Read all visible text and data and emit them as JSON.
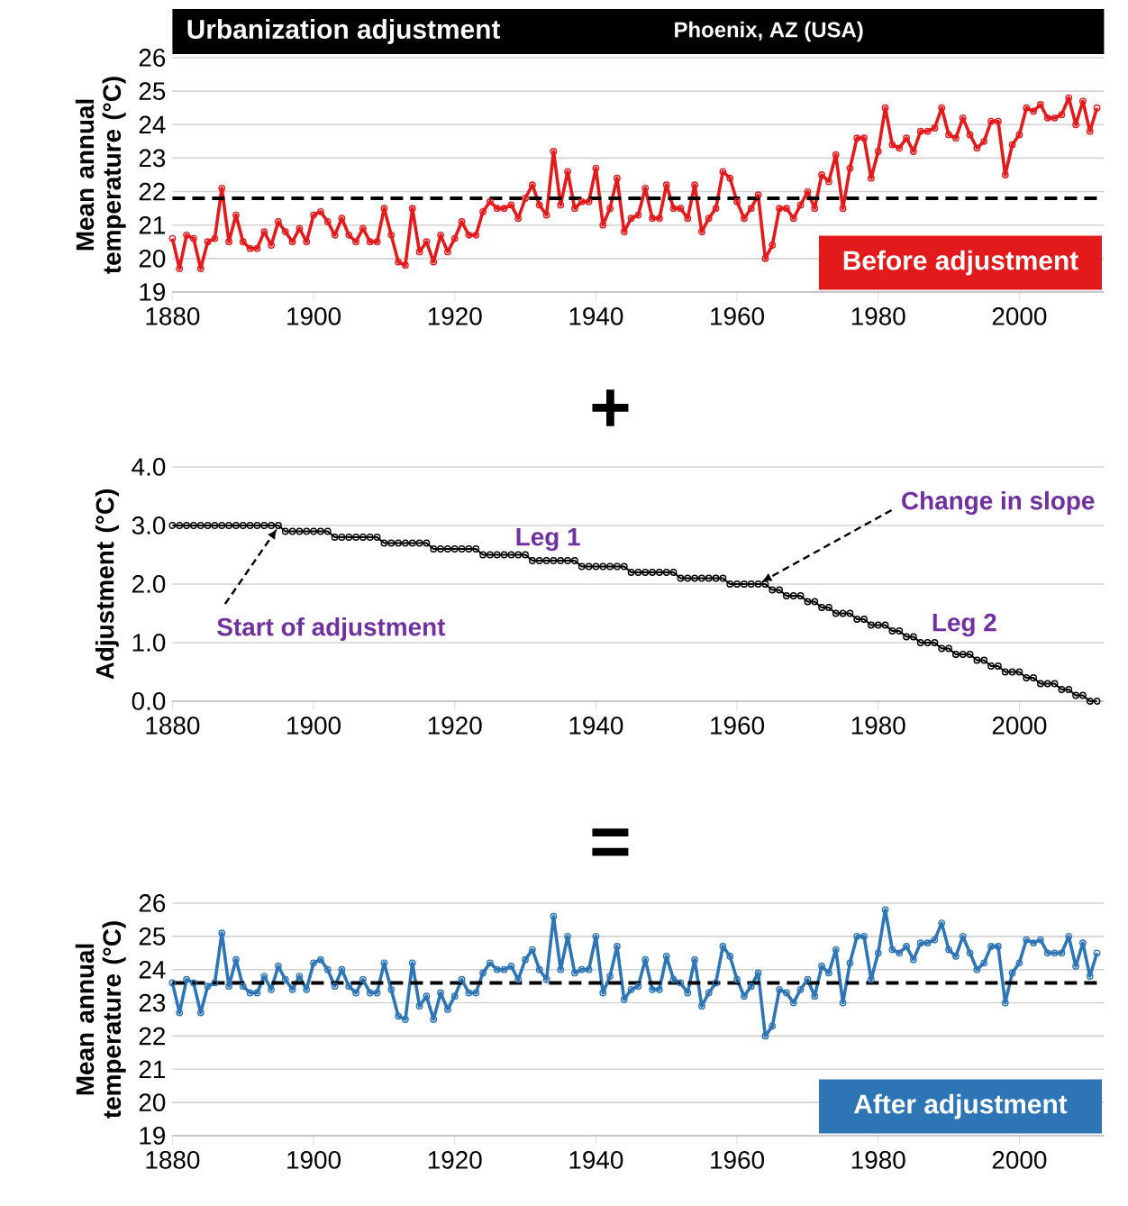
{
  "chart_data": [
    {
      "type": "line",
      "title": "Urbanization adjustment",
      "subtitle": "Phoenix, AZ (USA)",
      "ylabel": "Mean annual temperature (°C)",
      "x": [
        1880,
        1881,
        1882,
        1883,
        1884,
        1885,
        1886,
        1887,
        1888,
        1889,
        1890,
        1891,
        1892,
        1893,
        1894,
        1895,
        1896,
        1897,
        1898,
        1899,
        1900,
        1901,
        1902,
        1903,
        1904,
        1905,
        1906,
        1907,
        1908,
        1909,
        1910,
        1911,
        1912,
        1913,
        1914,
        1915,
        1916,
        1917,
        1918,
        1919,
        1920,
        1921,
        1922,
        1923,
        1924,
        1925,
        1926,
        1927,
        1928,
        1929,
        1930,
        1931,
        1932,
        1933,
        1934,
        1935,
        1936,
        1937,
        1938,
        1939,
        1940,
        1941,
        1942,
        1943,
        1944,
        1945,
        1946,
        1947,
        1948,
        1949,
        1950,
        1951,
        1952,
        1953,
        1954,
        1955,
        1956,
        1957,
        1958,
        1959,
        1960,
        1961,
        1962,
        1963,
        1964,
        1965,
        1966,
        1967,
        1968,
        1969,
        1970,
        1971,
        1972,
        1973,
        1974,
        1975,
        1976,
        1977,
        1978,
        1979,
        1980,
        1981,
        1982,
        1983,
        1984,
        1985,
        1986,
        1987,
        1988,
        1989,
        1990,
        1991,
        1992,
        1993,
        1994,
        1995,
        1996,
        1997,
        1998,
        1999,
        2000,
        2001,
        2002,
        2003,
        2004,
        2005,
        2006,
        2007,
        2008,
        2009,
        2010,
        2011
      ],
      "series": [
        {
          "color": "#e31a1c",
          "values": [
            20.6,
            19.7,
            20.7,
            20.6,
            19.7,
            20.5,
            20.6,
            22.1,
            20.5,
            21.3,
            20.5,
            20.3,
            20.3,
            20.8,
            20.4,
            21.1,
            20.8,
            20.5,
            20.9,
            20.5,
            21.3,
            21.4,
            21.1,
            20.7,
            21.2,
            20.7,
            20.5,
            20.9,
            20.5,
            20.5,
            21.5,
            20.7,
            19.9,
            19.8,
            21.5,
            20.2,
            20.5,
            19.9,
            20.7,
            20.2,
            20.6,
            21.1,
            20.7,
            20.7,
            21.4,
            21.7,
            21.5,
            21.5,
            21.6,
            21.2,
            21.8,
            22.2,
            21.6,
            21.3,
            23.2,
            21.6,
            22.6,
            21.5,
            21.7,
            21.7,
            22.7,
            21.0,
            21.5,
            22.4,
            20.8,
            21.2,
            21.3,
            22.1,
            21.2,
            21.2,
            22.2,
            21.5,
            21.5,
            21.2,
            22.2,
            20.8,
            21.2,
            21.5,
            22.6,
            22.4,
            21.7,
            21.2,
            21.5,
            21.9,
            20.0,
            20.4,
            21.5,
            21.5,
            21.2,
            21.6,
            22.0,
            21.5,
            22.5,
            22.3,
            23.1,
            21.5,
            22.7,
            23.6,
            23.6,
            22.4,
            23.2,
            24.5,
            23.4,
            23.3,
            23.6,
            23.2,
            23.8,
            23.8,
            23.9,
            24.5,
            23.7,
            23.6,
            24.2,
            23.7,
            23.3,
            23.5,
            24.1,
            24.1,
            22.5,
            23.4,
            23.7,
            24.5,
            24.4,
            24.6,
            24.2,
            24.2,
            24.3,
            24.8,
            24.0,
            24.7,
            23.8,
            24.5
          ]
        }
      ],
      "xlim": [
        1880,
        2012
      ],
      "xticks": [
        1880,
        1900,
        1920,
        1940,
        1960,
        1980,
        2000
      ],
      "ylim": [
        19,
        26
      ],
      "yticks": [
        19,
        20,
        21,
        22,
        23,
        24,
        25,
        26
      ],
      "grid": "y",
      "marker": "circle",
      "ref_lines": [
        {
          "axis": "y",
          "value": 21.8,
          "color": "#000000",
          "line_style": "dashed"
        }
      ],
      "annotations": [
        "Before adjustment"
      ]
    },
    {
      "type": "line",
      "ylabel": "Adjustment (°C)",
      "x": [
        1880,
        1881,
        1882,
        1883,
        1884,
        1885,
        1886,
        1887,
        1888,
        1889,
        1890,
        1891,
        1892,
        1893,
        1894,
        1895,
        1896,
        1897,
        1898,
        1899,
        1900,
        1901,
        1902,
        1903,
        1904,
        1905,
        1906,
        1907,
        1908,
        1909,
        1910,
        1911,
        1912,
        1913,
        1914,
        1915,
        1916,
        1917,
        1918,
        1919,
        1920,
        1921,
        1922,
        1923,
        1924,
        1925,
        1926,
        1927,
        1928,
        1929,
        1930,
        1931,
        1932,
        1933,
        1934,
        1935,
        1936,
        1937,
        1938,
        1939,
        1940,
        1941,
        1942,
        1943,
        1944,
        1945,
        1946,
        1947,
        1948,
        1949,
        1950,
        1951,
        1952,
        1953,
        1954,
        1955,
        1956,
        1957,
        1958,
        1959,
        1960,
        1961,
        1962,
        1963,
        1964,
        1965,
        1966,
        1967,
        1968,
        1969,
        1970,
        1971,
        1972,
        1973,
        1974,
        1975,
        1976,
        1977,
        1978,
        1979,
        1980,
        1981,
        1982,
        1983,
        1984,
        1985,
        1986,
        1987,
        1988,
        1989,
        1990,
        1991,
        1992,
        1993,
        1994,
        1995,
        1996,
        1997,
        1998,
        1999,
        2000,
        2001,
        2002,
        2003,
        2004,
        2005,
        2006,
        2007,
        2008,
        2009,
        2010,
        2011
      ],
      "series": [
        {
          "color": "#000000",
          "values": [
            3.0,
            3.0,
            3.0,
            3.0,
            3.0,
            3.0,
            3.0,
            3.0,
            3.0,
            3.0,
            3.0,
            3.0,
            3.0,
            3.0,
            3.0,
            3.0,
            2.9,
            2.9,
            2.9,
            2.9,
            2.9,
            2.9,
            2.9,
            2.8,
            2.8,
            2.8,
            2.8,
            2.8,
            2.8,
            2.8,
            2.7,
            2.7,
            2.7,
            2.7,
            2.7,
            2.7,
            2.7,
            2.6,
            2.6,
            2.6,
            2.6,
            2.6,
            2.6,
            2.6,
            2.5,
            2.5,
            2.5,
            2.5,
            2.5,
            2.5,
            2.5,
            2.4,
            2.4,
            2.4,
            2.4,
            2.4,
            2.4,
            2.4,
            2.3,
            2.3,
            2.3,
            2.3,
            2.3,
            2.3,
            2.3,
            2.2,
            2.2,
            2.2,
            2.2,
            2.2,
            2.2,
            2.2,
            2.1,
            2.1,
            2.1,
            2.1,
            2.1,
            2.1,
            2.1,
            2.0,
            2.0,
            2.0,
            2.0,
            2.0,
            2.0,
            1.9,
            1.9,
            1.8,
            1.8,
            1.8,
            1.7,
            1.7,
            1.6,
            1.6,
            1.5,
            1.5,
            1.5,
            1.4,
            1.4,
            1.3,
            1.3,
            1.3,
            1.2,
            1.2,
            1.1,
            1.1,
            1.0,
            1.0,
            1.0,
            0.9,
            0.9,
            0.8,
            0.8,
            0.8,
            0.7,
            0.7,
            0.6,
            0.6,
            0.5,
            0.5,
            0.5,
            0.4,
            0.4,
            0.3,
            0.3,
            0.3,
            0.2,
            0.2,
            0.1,
            0.1,
            0.0,
            0.0
          ]
        }
      ],
      "xlim": [
        1880,
        2012
      ],
      "xticks": [
        1880,
        1900,
        1920,
        1940,
        1960,
        1980,
        2000
      ],
      "ylim": [
        0,
        4
      ],
      "yticks": [
        {
          "value": 0,
          "label": "0.0"
        },
        {
          "value": 1,
          "label": "1.0"
        },
        {
          "value": 2,
          "label": "2.0"
        },
        {
          "value": 3,
          "label": "3.0"
        },
        {
          "value": 4,
          "label": "4.0"
        }
      ],
      "grid": "y",
      "marker": "circle",
      "annotations": [
        "+",
        "Leg 1",
        "Leg 2",
        {
          "text": "Start of adjustment",
          "x": 1895,
          "y": 3.0
        },
        {
          "text": "Change in slope",
          "x": 1963,
          "y": 2.0
        }
      ]
    },
    {
      "type": "line",
      "ylabel": "Mean annual temperature (°C)",
      "x": [
        1880,
        1881,
        1882,
        1883,
        1884,
        1885,
        1886,
        1887,
        1888,
        1889,
        1890,
        1891,
        1892,
        1893,
        1894,
        1895,
        1896,
        1897,
        1898,
        1899,
        1900,
        1901,
        1902,
        1903,
        1904,
        1905,
        1906,
        1907,
        1908,
        1909,
        1910,
        1911,
        1912,
        1913,
        1914,
        1915,
        1916,
        1917,
        1918,
        1919,
        1920,
        1921,
        1922,
        1923,
        1924,
        1925,
        1926,
        1927,
        1928,
        1929,
        1930,
        1931,
        1932,
        1933,
        1934,
        1935,
        1936,
        1937,
        1938,
        1939,
        1940,
        1941,
        1942,
        1943,
        1944,
        1945,
        1946,
        1947,
        1948,
        1949,
        1950,
        1951,
        1952,
        1953,
        1954,
        1955,
        1956,
        1957,
        1958,
        1959,
        1960,
        1961,
        1962,
        1963,
        1964,
        1965,
        1966,
        1967,
        1968,
        1969,
        1970,
        1971,
        1972,
        1973,
        1974,
        1975,
        1976,
        1977,
        1978,
        1979,
        1980,
        1981,
        1982,
        1983,
        1984,
        1985,
        1986,
        1987,
        1988,
        1989,
        1990,
        1991,
        1992,
        1993,
        1994,
        1995,
        1996,
        1997,
        1998,
        1999,
        2000,
        2001,
        2002,
        2003,
        2004,
        2005,
        2006,
        2007,
        2008,
        2009,
        2010,
        2011
      ],
      "series": [
        {
          "color": "#2e75b6",
          "values": [
            23.6,
            22.7,
            23.7,
            23.6,
            22.7,
            23.5,
            23.6,
            25.1,
            23.5,
            24.3,
            23.5,
            23.3,
            23.3,
            23.8,
            23.4,
            24.1,
            23.7,
            23.4,
            23.8,
            23.4,
            24.2,
            24.3,
            24.0,
            23.5,
            24.0,
            23.5,
            23.3,
            23.7,
            23.3,
            23.3,
            24.2,
            23.4,
            22.6,
            22.5,
            24.2,
            22.9,
            23.2,
            22.5,
            23.3,
            22.8,
            23.2,
            23.7,
            23.3,
            23.3,
            23.9,
            24.2,
            24.0,
            24.0,
            24.1,
            23.7,
            24.3,
            24.6,
            24.0,
            23.7,
            25.6,
            24.0,
            25.0,
            23.9,
            24.0,
            24.0,
            25.0,
            23.3,
            23.8,
            24.7,
            23.1,
            23.4,
            23.5,
            24.3,
            23.4,
            23.4,
            24.4,
            23.7,
            23.6,
            23.3,
            24.3,
            22.9,
            23.3,
            23.6,
            24.7,
            24.4,
            23.7,
            23.2,
            23.5,
            23.9,
            22.0,
            22.3,
            23.4,
            23.3,
            23.0,
            23.4,
            23.7,
            23.2,
            24.1,
            23.9,
            24.6,
            23.0,
            24.2,
            25.0,
            25.0,
            23.7,
            24.5,
            25.8,
            24.6,
            24.5,
            24.7,
            24.3,
            24.8,
            24.8,
            24.9,
            25.4,
            24.6,
            24.4,
            25.0,
            24.5,
            24.0,
            24.2,
            24.7,
            24.7,
            23.0,
            23.9,
            24.2,
            24.9,
            24.8,
            24.9,
            24.5,
            24.5,
            24.5,
            25.0,
            24.1,
            24.8,
            23.8,
            24.5
          ]
        }
      ],
      "xlim": [
        1880,
        2012
      ],
      "xticks": [
        1880,
        1900,
        1920,
        1940,
        1960,
        1980,
        2000
      ],
      "ylim": [
        19,
        26
      ],
      "yticks": [
        19,
        20,
        21,
        22,
        23,
        24,
        25,
        26
      ],
      "grid": "y",
      "marker": "circle",
      "ref_lines": [
        {
          "axis": "y",
          "value": 23.6,
          "color": "#000000",
          "line_style": "dashed"
        }
      ],
      "annotations": [
        "=",
        "After adjustment"
      ]
    }
  ]
}
